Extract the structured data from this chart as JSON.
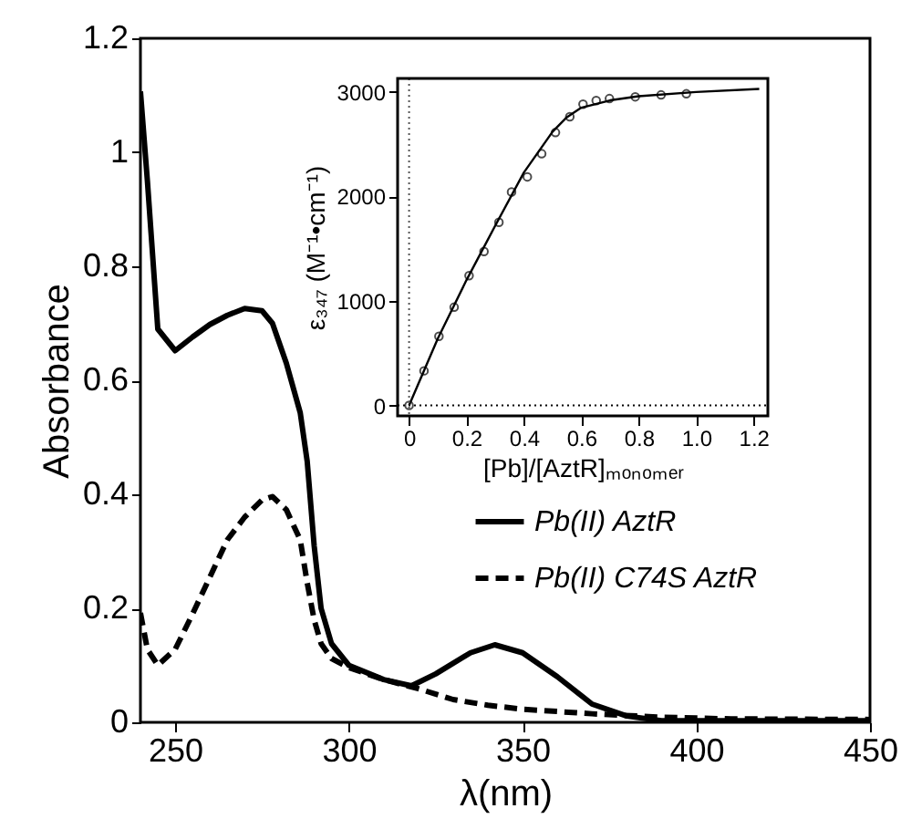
{
  "chart_data": [
    {
      "type": "line",
      "xlabel": "λ(nm)",
      "ylabel": "Absorbance",
      "xlim": [
        240,
        450
      ],
      "xticks": [
        250,
        300,
        350,
        400,
        450
      ],
      "ylim": [
        0,
        1.2
      ],
      "yticks": [
        0,
        0.2,
        0.4,
        0.6,
        0.8,
        1,
        1.2
      ],
      "grid": false,
      "legend": "right",
      "series": [
        {
          "name": "Pb(II) AztR",
          "color": "#000000",
          "line_style": "solid",
          "x": [
            240,
            242,
            245,
            250,
            255,
            260,
            265,
            270,
            275,
            278,
            282,
            286,
            288,
            290,
            292,
            295,
            300,
            310,
            318,
            325,
            335,
            342,
            350,
            360,
            370,
            380,
            390,
            400,
            450
          ],
          "values": [
            1.107,
            0.95,
            0.69,
            0.652,
            0.676,
            0.698,
            0.714,
            0.726,
            0.722,
            0.7,
            0.63,
            0.543,
            0.458,
            0.31,
            0.2,
            0.138,
            0.1,
            0.075,
            0.064,
            0.085,
            0.122,
            0.136,
            0.122,
            0.08,
            0.032,
            0.011,
            0.003,
            0.003,
            0.003
          ]
        },
        {
          "name": "Pb(II) C74S AztR",
          "color": "#000000",
          "line_style": "dashed",
          "x": [
            240,
            242,
            245,
            250,
            255,
            260,
            265,
            270,
            275,
            278,
            282,
            286,
            288,
            290,
            292,
            295,
            300,
            310,
            320,
            330,
            340,
            350,
            370,
            390,
            410,
            450
          ],
          "values": [
            0.192,
            0.128,
            0.1,
            0.128,
            0.19,
            0.255,
            0.32,
            0.36,
            0.39,
            0.396,
            0.373,
            0.32,
            0.245,
            0.18,
            0.138,
            0.112,
            0.096,
            0.075,
            0.059,
            0.04,
            0.03,
            0.023,
            0.015,
            0.009,
            0.006,
            0.005
          ]
        }
      ]
    },
    {
      "type": "scatter",
      "xlabel": "[Pb]/[AztR]ₘₒₙₒₘₑᵣ",
      "ylabel": "ε₃₄₇ (M⁻¹•cm⁻¹)",
      "xlim": [
        -0.04,
        1.25
      ],
      "xticks": [
        0,
        0.2,
        0.4,
        0.6,
        0.8,
        {
          "value": 1,
          "label": "1.0"
        },
        1.2
      ],
      "ylim": [
        -100,
        3130
      ],
      "yticks": [
        0,
        1000,
        2000,
        3000
      ],
      "grid": false,
      "ref_lines": [
        {
          "axis": "x",
          "value": 0,
          "line_style": "dotted",
          "color": "#555555"
        },
        {
          "axis": "y",
          "value": 0,
          "line_style": "dotted",
          "color": "#000000"
        }
      ],
      "series": [
        {
          "type": "scatter",
          "marker": "circle",
          "color": "#000000",
          "x": [
            0,
            0.052,
            0.104,
            0.157,
            0.209,
            0.261,
            0.313,
            0.357,
            0.412,
            0.462,
            0.51,
            0.56,
            0.606,
            0.652,
            0.698,
            0.788,
            0.878,
            0.966
          ],
          "values": [
            0,
            331,
            662,
            940,
            1242,
            1474,
            1753,
            2043,
            2188,
            2409,
            2612,
            2763,
            2884,
            2919,
            2937,
            2954,
            2972,
            2983
          ]
        },
        {
          "type": "line",
          "marker": "none",
          "line_style": "solid",
          "color": "#000000",
          "x": [
            0,
            0.1,
            0.2,
            0.3,
            0.4,
            0.5,
            0.55,
            0.6,
            0.7,
            0.8,
            1.0,
            1.22
          ],
          "values": [
            0,
            640,
            1200,
            1720,
            2230,
            2620,
            2760,
            2850,
            2920,
            2960,
            3000,
            3030
          ]
        }
      ]
    }
  ]
}
